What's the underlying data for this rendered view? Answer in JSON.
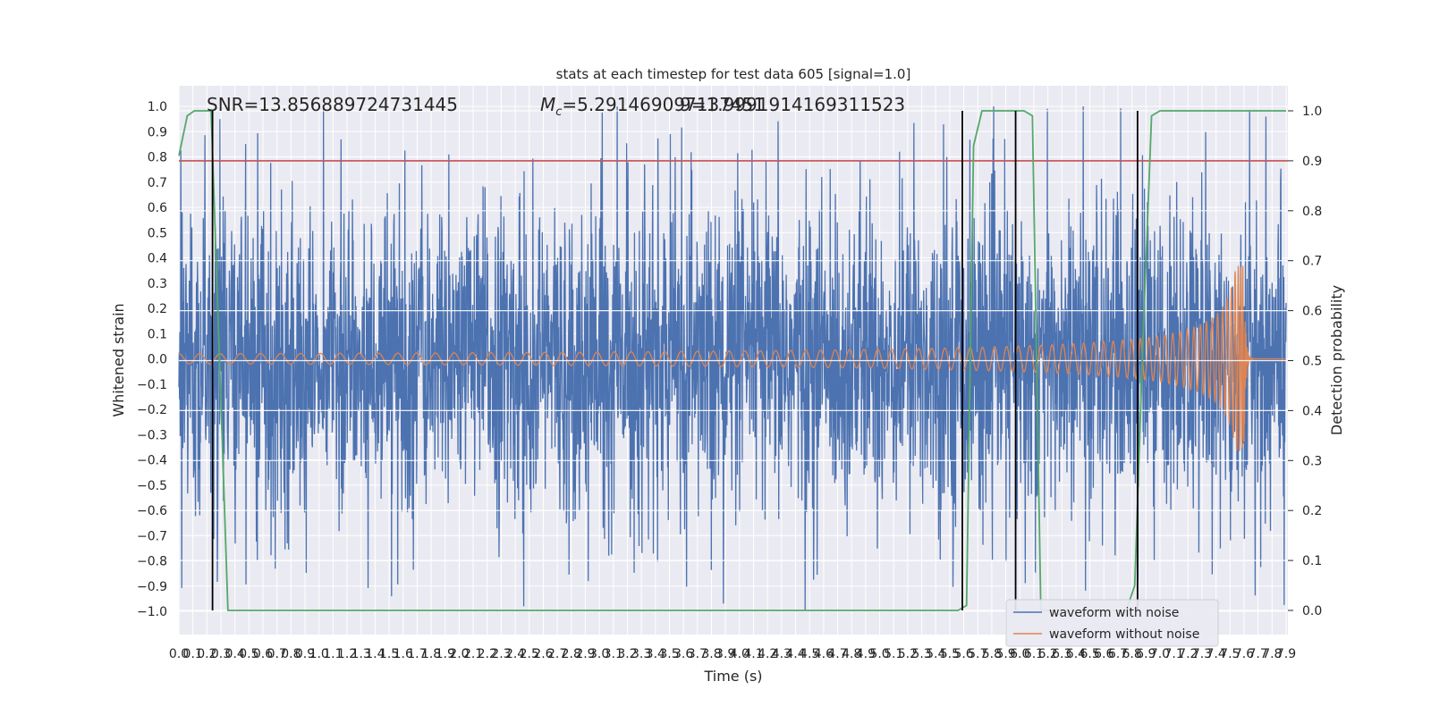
{
  "chart_data": {
    "type": "line",
    "title": "stats at each timestep for test data 605 [signal=1.0]",
    "xlabel": "Time (s)",
    "ylabel_left": "Whitened strain",
    "ylabel_right": "Detection probability",
    "xlim": [
      0.0,
      7.9
    ],
    "ylim_left": [
      -1.1,
      1.1
    ],
    "ylim_right": [
      -0.05,
      1.03
    ],
    "grid": true,
    "x_ticks": [
      "0.0",
      "0.1",
      "0.2",
      "0.3",
      "0.4",
      "0.5",
      "0.6",
      "0.7",
      "0.8",
      "0.9",
      "1.0",
      "1.1",
      "1.2",
      "1.3",
      "1.4",
      "1.5",
      "1.6",
      "1.7",
      "1.8",
      "1.9",
      "2.0",
      "2.1",
      "2.2",
      "2.3",
      "2.4",
      "2.5",
      "2.6",
      "2.7",
      "2.8",
      "2.9",
      "3.0",
      "3.1",
      "3.2",
      "3.3",
      "3.4",
      "3.5",
      "3.6",
      "3.7",
      "3.8",
      "3.9",
      "4.0",
      "4.1",
      "4.2",
      "4.3",
      "4.4",
      "4.5",
      "4.6",
      "4.7",
      "4.8",
      "4.9",
      "5.0",
      "5.1",
      "5.2",
      "5.3",
      "5.4",
      "5.5",
      "5.6",
      "5.7",
      "5.8",
      "5.9",
      "6.0",
      "6.1",
      "6.2",
      "6.3",
      "6.4",
      "6.5",
      "6.6",
      "6.7",
      "6.8",
      "6.9",
      "7.0",
      "7.1",
      "7.2",
      "7.3",
      "7.4",
      "7.5",
      "7.6",
      "7.7",
      "7.8",
      "7.9"
    ],
    "y_ticks_left": [
      "−1.0",
      "−0.9",
      "−0.8",
      "−0.7",
      "−0.6",
      "−0.5",
      "−0.4",
      "−0.3",
      "−0.2",
      "−0.1",
      "0.0",
      "0.1",
      "0.2",
      "0.3",
      "0.4",
      "0.5",
      "0.6",
      "0.7",
      "0.8",
      "0.9",
      "1.0"
    ],
    "y_ticks_right": [
      "0.0",
      "0.1",
      "0.2",
      "0.3",
      "0.4",
      "0.5",
      "0.6",
      "0.7",
      "0.8",
      "0.9",
      "1.0"
    ],
    "annotations": {
      "snr": "SNR=13.856889724731445",
      "mc_symbol": "M",
      "mc_sub": "c",
      "mc_value": "=5.291469097137451",
      "overlap": "9=1.9991914169311523"
    },
    "threshold": {
      "value": 0.9,
      "axis": "right",
      "color": "#c44e52"
    },
    "series": [
      {
        "name": "waveform with noise",
        "color": "#4c72b0",
        "axis": "left",
        "envelope_max": 1.0,
        "envelope_min": -1.0
      },
      {
        "name": "waveform without noise",
        "color": "#dd8452",
        "axis": "left",
        "amplitude_start": 0.02,
        "peak_time": 7.6,
        "peak_amplitude": 0.37
      },
      {
        "name": "detection probability",
        "color": "#55a868",
        "axis": "right",
        "x": [
          0.0,
          0.06,
          0.11,
          0.17,
          0.23,
          0.29,
          0.35,
          5.56,
          5.62,
          5.67,
          5.73,
          5.79,
          5.85,
          5.91,
          5.97,
          6.03,
          6.09,
          6.15,
          6.7,
          6.76,
          6.82,
          6.88,
          6.94,
          7.0,
          7.9
        ],
        "y": [
          0.91,
          0.99,
          1.0,
          1.0,
          1.0,
          0.5,
          0.0,
          0.0,
          0.01,
          0.93,
          1.0,
          1.0,
          1.0,
          1.0,
          1.0,
          1.0,
          0.99,
          0.0,
          0.0,
          0.0,
          0.05,
          0.55,
          0.99,
          1.0,
          1.0
        ]
      }
    ],
    "markers": {
      "x": [
        0.24,
        5.59,
        5.97,
        6.84
      ],
      "color": "#000000"
    },
    "legend": {
      "placement": "lower-right",
      "entries": [
        "waveform with noise",
        "waveform without noise"
      ]
    }
  }
}
